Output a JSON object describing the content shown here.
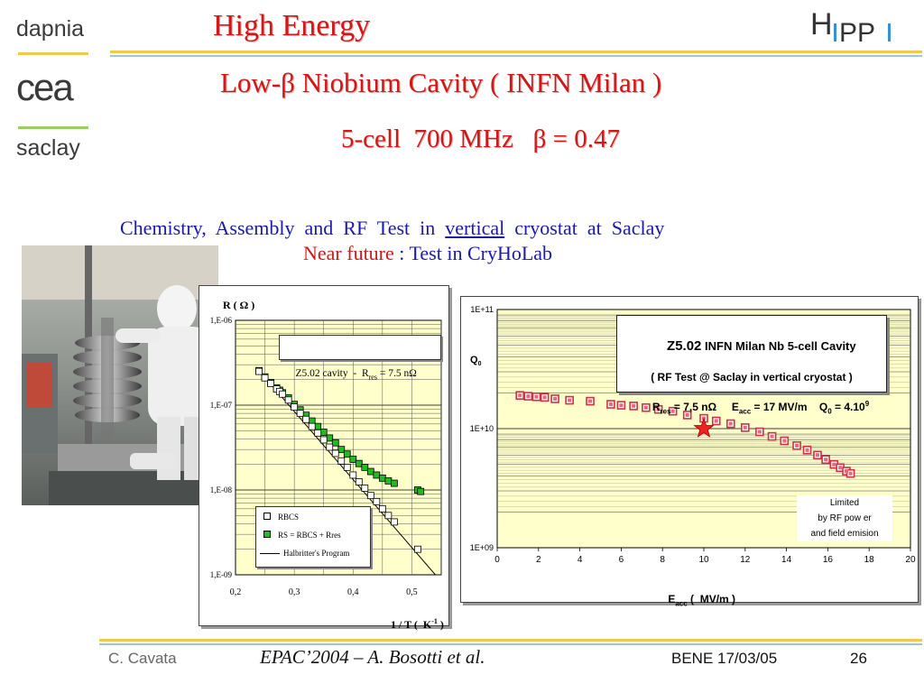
{
  "header": {
    "logo_top": "dapnia",
    "logo_mid": "cea",
    "logo_bottom": "saclay",
    "title": "High Energy",
    "right_logo": "HIPPI",
    "subtitle": "Low-β Niobium Cavity ( INFN Milan )",
    "spec": "5-cell  700 MHz   β = 0.47"
  },
  "body": {
    "line1_a": "Chemistry,  Assembly  and  RF  Test  in",
    "line1_u": "vertical",
    "line1_b": "cryostat  at  Saclay",
    "line2_red": "Near future",
    "line2_blue": ": Test in CryHoLab"
  },
  "footer": {
    "author": "C. Cavata",
    "ref": "EPAC’2004 – A. Bosotti et al.",
    "date": "BENE 17/03/05",
    "page": "26"
  },
  "colors": {
    "title": "#d01818",
    "body_blue": "#1a1aa8",
    "rule_gold": "#f2c94c",
    "rule_blue": "#9ec5e0",
    "rs_marker": "#22bb22",
    "q0_marker": "#ee6677"
  },
  "chart_data": [
    {
      "type": "scatter",
      "y_label_a": "R ( Ω )",
      "x_label": "1 / T (  K",
      "x_label_sup": "-1",
      "x_label_end": " )",
      "yscale": "log",
      "ylim": [
        1e-09,
        1e-06
      ],
      "xlim": [
        0.2,
        0.55
      ],
      "x_ticks": [
        "0,2",
        "0,3",
        "0,4",
        "0,5"
      ],
      "x_tick_values": [
        0.2,
        0.3,
        0.4,
        0.5
      ],
      "y_ticks": [
        "1,E-06",
        "1,E-07",
        "1,E-08",
        "1,E-09"
      ],
      "grid": true,
      "annotation_a": "Z5.02 cavity  -  R",
      "annotation_sub": "res",
      "annotation_b": " = 7.5 nΩ",
      "legend": [
        "RBCS",
        "RS = RBCS + Rres",
        "Halbritter's Program"
      ],
      "legend_placement": "bottom-left",
      "series": [
        {
          "name": "RBCS",
          "marker": "open-square",
          "x": [
            0.24,
            0.25,
            0.26,
            0.27,
            0.275,
            0.28,
            0.29,
            0.3,
            0.31,
            0.32,
            0.33,
            0.34,
            0.35,
            0.36,
            0.37,
            0.38,
            0.39,
            0.4,
            0.41,
            0.42,
            0.43,
            0.44,
            0.45,
            0.46,
            0.47,
            0.51
          ],
          "y": [
            2.5e-07,
            2.1e-07,
            1.8e-07,
            1.55e-07,
            1.45e-07,
            1.35e-07,
            1.15e-07,
            9.5e-08,
            8e-08,
            6.8e-08,
            5.6e-08,
            4.7e-08,
            3.9e-08,
            3.2e-08,
            2.7e-08,
            2.2e-08,
            1.85e-08,
            1.5e-08,
            1.25e-08,
            1.05e-08,
            8.6e-09,
            7.3e-09,
            6e-09,
            5e-09,
            4.2e-09,
            2e-09
          ]
        },
        {
          "name": "RS = RBCS + Rres",
          "marker": "green-square",
          "x": [
            0.24,
            0.25,
            0.26,
            0.27,
            0.275,
            0.28,
            0.29,
            0.3,
            0.31,
            0.32,
            0.33,
            0.34,
            0.35,
            0.36,
            0.37,
            0.38,
            0.39,
            0.4,
            0.41,
            0.42,
            0.43,
            0.44,
            0.45,
            0.46,
            0.47,
            0.51,
            0.515
          ],
          "y": [
            2.55e-07,
            2.15e-07,
            1.85e-07,
            1.6e-07,
            1.5e-07,
            1.4e-07,
            1.22e-07,
            1.02e-07,
            8.8e-08,
            7.6e-08,
            6.5e-08,
            5.6e-08,
            4.8e-08,
            4.1e-08,
            3.6e-08,
            3e-08,
            2.65e-08,
            2.3e-08,
            2.05e-08,
            1.85e-08,
            1.65e-08,
            1.5e-08,
            1.38e-08,
            1.28e-08,
            1.2e-08,
            1e-08,
            9.6e-09
          ]
        },
        {
          "name": "Halbritter's Program",
          "marker": "line",
          "x": [
            0.235,
            0.54
          ],
          "y": [
            2.8e-07,
            1e-09
          ]
        }
      ]
    },
    {
      "type": "scatter",
      "y_label": "Q",
      "y_label_sub": "0",
      "x_label": "E",
      "x_label_sub": "acc",
      "x_label_end": " (  MV/m )",
      "yscale": "log",
      "ylim": [
        1000000000.0,
        100000000000.0
      ],
      "xlim": [
        0,
        20
      ],
      "x_ticks": [
        "0",
        "2",
        "4",
        "6",
        "8",
        "10",
        "12",
        "14",
        "16",
        "18",
        "20"
      ],
      "y_ticks": [
        "1E+11",
        "1E+10",
        "1E+09"
      ],
      "grid": true,
      "box_title_a": "Z5.02",
      "box_title_b": " INFN Milan Nb 5-cell Cavity",
      "box_line2": "( RF Test @ Saclay in vertical cryostat )",
      "box_line3_a": "R",
      "box_line3_sub": "res",
      "box_line3_b": " = 7,5 nΩ     E",
      "box_line3_sub2": "acc",
      "box_line3_c": " = 17 MV/m    Q",
      "box_line3_sub3": "0",
      "box_line3_d": " = 4.10",
      "box_line3_sup": "9",
      "note": [
        "Limited",
        "by  RF pow er",
        "and field emision"
      ],
      "series": [
        {
          "name": "Q0",
          "marker": "pink-square",
          "x": [
            1.1,
            1.5,
            1.9,
            2.3,
            2.8,
            3.5,
            4.5,
            5.5,
            6.0,
            6.6,
            7.2,
            7.8,
            8.5,
            9.2,
            10.0,
            10.6,
            11.3,
            12.0,
            12.7,
            13.3,
            13.9,
            14.5,
            15.0,
            15.5,
            15.9,
            16.3,
            16.6,
            16.9,
            17.1
          ],
          "y": [
            19000000000.0,
            18700000000.0,
            18500000000.0,
            18300000000.0,
            17800000000.0,
            17300000000.0,
            17000000000.0,
            16000000000.0,
            15700000000.0,
            15500000000.0,
            15000000000.0,
            14500000000.0,
            14000000000.0,
            13000000000.0,
            12200000000.0,
            11600000000.0,
            11000000000.0,
            10200000000.0,
            9400000000.0,
            8600000000.0,
            7900000000.0,
            7200000000.0,
            6600000000.0,
            6000000000.0,
            5500000000.0,
            5000000000.0,
            4700000000.0,
            4400000000.0,
            4200000000.0
          ]
        },
        {
          "name": "operating point",
          "marker": "star",
          "x": [
            10.0
          ],
          "y": [
            10000000000.0
          ]
        }
      ]
    }
  ]
}
